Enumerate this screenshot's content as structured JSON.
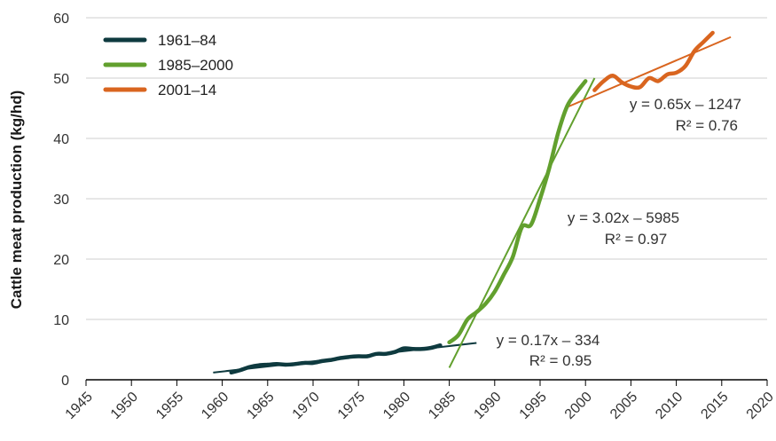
{
  "chart_data": {
    "type": "line",
    "ylabel": "Cattle meat production (kg/hd)",
    "xlabel": "",
    "xlim": [
      1945,
      2020
    ],
    "ylim": [
      0,
      60
    ],
    "x_ticks": [
      "1945",
      "1950",
      "1955",
      "1960",
      "1965",
      "1970",
      "1975",
      "1980",
      "1985",
      "1990",
      "1995",
      "2000",
      "2005",
      "2010",
      "2015",
      "2020"
    ],
    "y_ticks": [
      "0",
      "10",
      "20",
      "30",
      "40",
      "50",
      "60"
    ],
    "grid": "horizontal",
    "legend_position": "top-left",
    "series": [
      {
        "name": "1961–84",
        "color": "#0e3a3f",
        "x": [
          1961,
          1962,
          1963,
          1964,
          1965,
          1966,
          1967,
          1968,
          1969,
          1970,
          1971,
          1972,
          1973,
          1974,
          1975,
          1976,
          1977,
          1978,
          1979,
          1980,
          1981,
          1982,
          1983,
          1984
        ],
        "y": [
          1.2,
          1.6,
          2.1,
          2.4,
          2.5,
          2.6,
          2.5,
          2.6,
          2.8,
          2.8,
          3.1,
          3.3,
          3.6,
          3.8,
          3.9,
          3.9,
          4.3,
          4.3,
          4.6,
          5.2,
          5.1,
          5.1,
          5.3,
          5.7
        ]
      },
      {
        "name": "1985–2000",
        "color": "#62a02e",
        "x": [
          1985,
          1986,
          1987,
          1988,
          1989,
          1990,
          1991,
          1992,
          1993,
          1994,
          1995,
          1996,
          1997,
          1998,
          1999,
          2000
        ],
        "y": [
          6.2,
          7.4,
          10.0,
          11.2,
          12.6,
          14.6,
          17.4,
          20.4,
          25.3,
          25.7,
          30.0,
          35.0,
          41.0,
          45.4,
          47.6,
          49.5
        ]
      },
      {
        "name": "2001–14",
        "color": "#d9651f",
        "x": [
          2001,
          2002,
          2003,
          2004,
          2005,
          2006,
          2007,
          2008,
          2009,
          2010,
          2011,
          2012,
          2013,
          2014
        ],
        "y": [
          48.0,
          49.5,
          50.4,
          49.3,
          48.6,
          48.5,
          50.0,
          49.5,
          50.6,
          50.9,
          52.0,
          54.5,
          56.0,
          57.5
        ]
      }
    ],
    "trendlines": [
      {
        "series": "1961–84",
        "slope": 0.17,
        "intercept": -334,
        "x_range": [
          1959,
          1988
        ],
        "y_range": [
          1.2,
          6.1
        ],
        "equation": "y = 0.17x – 334",
        "r2": "R² = 0.95"
      },
      {
        "series": "1985–2000",
        "slope": 3.02,
        "intercept": -5985,
        "x_range": [
          1985,
          2001
        ],
        "y_range": [
          2.0,
          50.0
        ],
        "equation": "y = 3.02x – 5985",
        "r2": "R² = 0.97"
      },
      {
        "series": "2001–14",
        "slope": 0.65,
        "intercept": -1247,
        "x_range": [
          1998,
          2016
        ],
        "y_range": [
          45.2,
          56.8
        ],
        "equation": "y = 0.65x – 1247",
        "r2": "R² = 0.76"
      }
    ]
  }
}
